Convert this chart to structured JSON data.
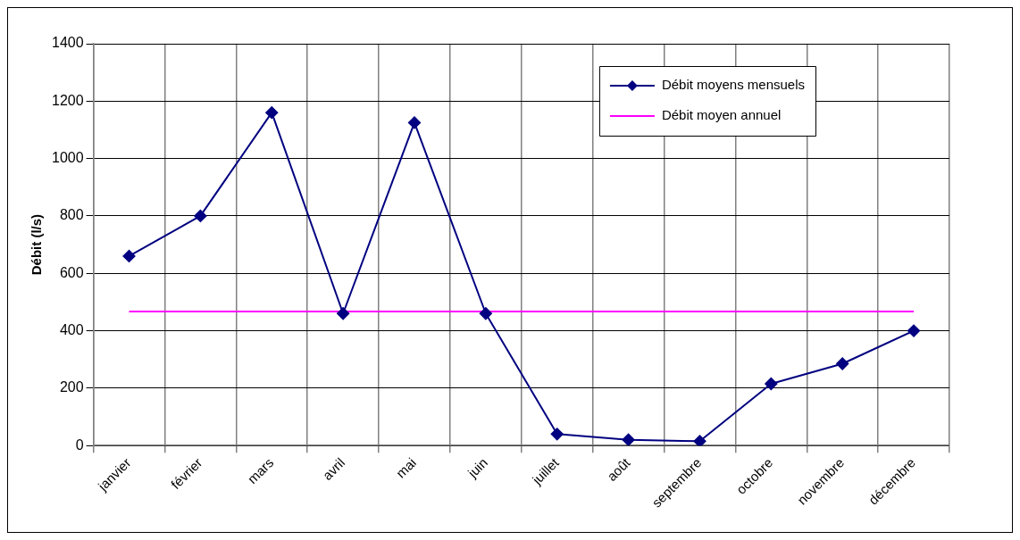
{
  "chart_data": {
    "type": "line",
    "ylabel": "Débit (l/s)",
    "categories": [
      "janvier",
      "février",
      "mars",
      "avril",
      "mai",
      "juin",
      "juillet",
      "août",
      "septembre",
      "octobre",
      "novembre",
      "décembre"
    ],
    "series": [
      {
        "name": "Débit moyens mensuels",
        "color": "#000080",
        "marker": "diamond",
        "values": [
          660,
          800,
          1160,
          460,
          1125,
          460,
          40,
          20,
          15,
          215,
          285,
          400
        ]
      },
      {
        "name": "Débit moyen annuel",
        "color": "#ff00ff",
        "marker": "none",
        "values": [
          467,
          467,
          467,
          467,
          467,
          467,
          467,
          467,
          467,
          467,
          467,
          467
        ]
      }
    ],
    "ylim": [
      0,
      1400
    ],
    "yticks": [
      0,
      200,
      400,
      600,
      800,
      1000,
      1200,
      1400
    ],
    "grid": true,
    "legend": "top right",
    "line_style": "solid"
  }
}
